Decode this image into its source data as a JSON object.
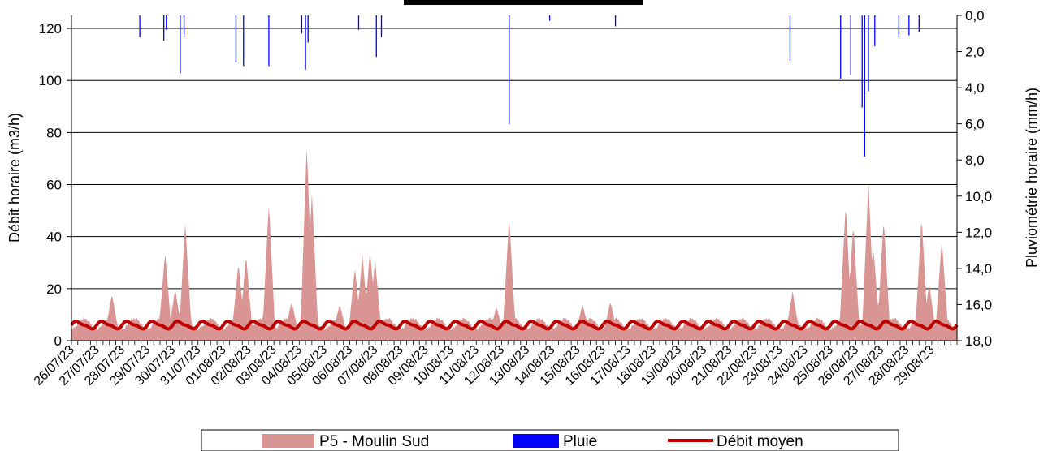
{
  "chart_data": {
    "type": "area",
    "title": "",
    "xlabel": "",
    "ylabel": "Débit horaire (m3/h)",
    "y2label": "Pluviométrie horaire (mm/h)",
    "ylim": [
      0,
      125
    ],
    "y2lim": [
      0,
      18
    ],
    "y2_inverted": true,
    "y_ticks": [
      "0",
      "20",
      "40",
      "60",
      "80",
      "100",
      "120"
    ],
    "y2_ticks": [
      "0,0",
      "2,0",
      "4,0",
      "6,0",
      "8,0",
      "10,0",
      "12,0",
      "14,0",
      "16,0",
      "18,0"
    ],
    "x_categories": [
      "26/07/23",
      "27/07/23",
      "28/07/23",
      "29/07/23",
      "30/07/23",
      "31/07/23",
      "01/08/23",
      "02/08/23",
      "03/08/23",
      "04/08/23",
      "05/08/23",
      "06/08/23",
      "07/08/23",
      "08/08/23",
      "09/08/23",
      "10/08/23",
      "11/08/23",
      "12/08/23",
      "13/08/23",
      "14/08/23",
      "15/08/23",
      "16/08/23",
      "17/08/23",
      "18/08/23",
      "19/08/23",
      "20/08/23",
      "21/08/23",
      "22/08/23",
      "23/08/23",
      "24/08/23",
      "25/08/23",
      "26/08/23",
      "27/08/23",
      "28/08/23",
      "29/08/23"
    ],
    "grid": "horizontal",
    "legend_position": "bottom",
    "colors": {
      "flow": "#d99594",
      "rain": "#0000ff",
      "mean": "#c00000"
    },
    "series": [
      {
        "name": "P5 - Moulin Sud",
        "kind": "area",
        "axis": "left",
        "baseline_daily": [
          4,
          8,
          5
        ],
        "peaks": [
          {
            "day": 1.6,
            "value": 18
          },
          {
            "day": 3.7,
            "value": 34
          },
          {
            "day": 4.1,
            "value": 20
          },
          {
            "day": 4.5,
            "value": 45
          },
          {
            "day": 6.6,
            "value": 30
          },
          {
            "day": 6.9,
            "value": 33
          },
          {
            "day": 7.8,
            "value": 53
          },
          {
            "day": 8.7,
            "value": 15
          },
          {
            "day": 9.3,
            "value": 76
          },
          {
            "day": 9.5,
            "value": 57
          },
          {
            "day": 10.6,
            "value": 14
          },
          {
            "day": 11.2,
            "value": 28
          },
          {
            "day": 11.5,
            "value": 33
          },
          {
            "day": 11.8,
            "value": 35
          },
          {
            "day": 12.0,
            "value": 31
          },
          {
            "day": 16.8,
            "value": 13
          },
          {
            "day": 17.3,
            "value": 48
          },
          {
            "day": 20.2,
            "value": 14
          },
          {
            "day": 21.3,
            "value": 15
          },
          {
            "day": 28.5,
            "value": 19
          },
          {
            "day": 30.6,
            "value": 53
          },
          {
            "day": 30.9,
            "value": 45
          },
          {
            "day": 31.5,
            "value": 61
          },
          {
            "day": 31.7,
            "value": 35
          },
          {
            "day": 32.1,
            "value": 47
          },
          {
            "day": 33.6,
            "value": 48
          },
          {
            "day": 33.9,
            "value": 22
          },
          {
            "day": 34.4,
            "value": 39
          }
        ]
      },
      {
        "name": "Pluie",
        "kind": "bar",
        "axis": "right",
        "events": [
          {
            "day": 2.7,
            "value": 1.2
          },
          {
            "day": 3.65,
            "value": 1.4
          },
          {
            "day": 3.75,
            "value": 0.8
          },
          {
            "day": 4.3,
            "value": 3.2
          },
          {
            "day": 4.45,
            "value": 1.2
          },
          {
            "day": 6.5,
            "value": 2.6
          },
          {
            "day": 6.8,
            "value": 2.8
          },
          {
            "day": 7.8,
            "value": 2.8
          },
          {
            "day": 9.1,
            "value": 1.0
          },
          {
            "day": 9.25,
            "value": 3.0
          },
          {
            "day": 9.35,
            "value": 1.5
          },
          {
            "day": 11.35,
            "value": 0.8
          },
          {
            "day": 12.05,
            "value": 2.3
          },
          {
            "day": 12.25,
            "value": 1.2
          },
          {
            "day": 17.3,
            "value": 6.0
          },
          {
            "day": 18.9,
            "value": 0.3
          },
          {
            "day": 21.5,
            "value": 0.6
          },
          {
            "day": 28.4,
            "value": 2.5
          },
          {
            "day": 30.4,
            "value": 3.5
          },
          {
            "day": 30.8,
            "value": 3.3
          },
          {
            "day": 31.25,
            "value": 5.1
          },
          {
            "day": 31.35,
            "value": 7.8
          },
          {
            "day": 31.5,
            "value": 4.2
          },
          {
            "day": 31.75,
            "value": 1.7
          },
          {
            "day": 32.7,
            "value": 1.2
          },
          {
            "day": 33.1,
            "value": 1.1
          },
          {
            "day": 33.5,
            "value": 0.9
          }
        ]
      },
      {
        "name": "Débit moyen",
        "kind": "line",
        "axis": "left",
        "mean_value": 6,
        "daily_amplitude": 2.5,
        "cycles_per_day": 1
      }
    ]
  },
  "legend": {
    "items": [
      {
        "label": "P5 - Moulin Sud",
        "color": "#d99594"
      },
      {
        "label": "Pluie",
        "color": "#0000ff"
      },
      {
        "label": "Débit moyen",
        "color": "#c00000"
      }
    ]
  }
}
